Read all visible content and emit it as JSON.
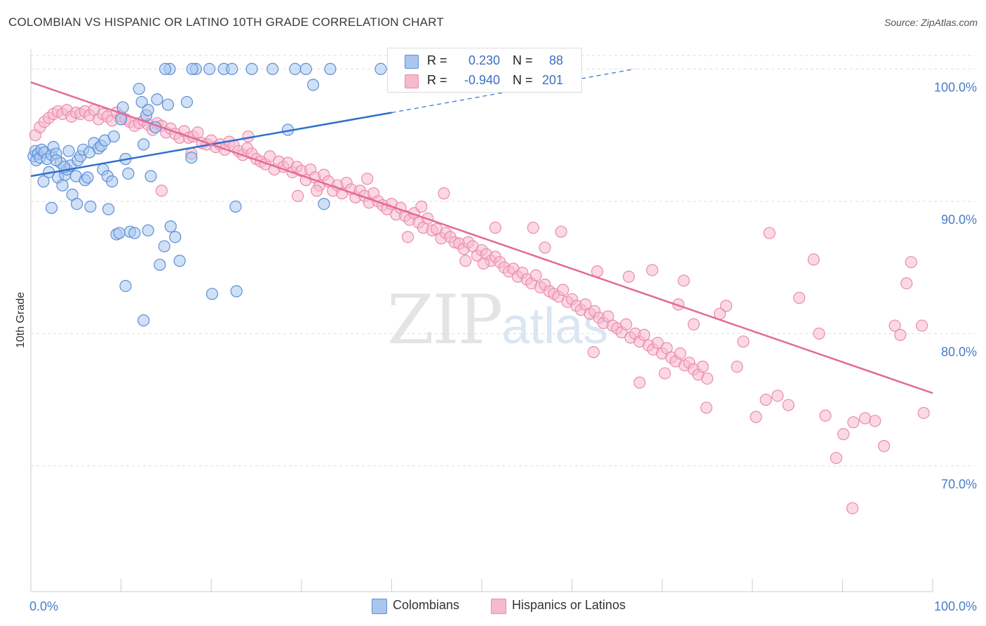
{
  "title": "COLOMBIAN VS HISPANIC OR LATINO 10TH GRADE CORRELATION CHART",
  "source": "Source: ZipAtlas.com",
  "watermark": {
    "zip": "ZIP",
    "atlas": "atlas"
  },
  "colors": {
    "blue_fill": "#a9c6ef",
    "blue_stroke": "#5b8fd6",
    "blue_line": "#2f6fcc",
    "pink_fill": "#f6b9cd",
    "pink_stroke": "#ec8aae",
    "pink_line": "#e46a96",
    "tick_text": "#4a7cc9",
    "grid": "#dddddd"
  },
  "legend": {
    "rows": [
      {
        "r_label": "R =",
        "r_value": "0.230",
        "n_label": "N =",
        "n_value": "88",
        "color": "#a9c6ef"
      },
      {
        "r_label": "R =",
        "r_value": "-0.940",
        "n_label": "N =",
        "n_value": "201",
        "color": "#f6b9cd"
      }
    ]
  },
  "bottom_legend": [
    {
      "label": "Colombians",
      "color": "#a9c6ef"
    },
    {
      "label": "Hispanics or Latinos",
      "color": "#f6b9cd"
    }
  ],
  "chart_data": {
    "type": "scatter",
    "title": "COLOMBIAN VS HISPANIC OR LATINO 10TH GRADE CORRELATION CHART",
    "xlabel": "",
    "ylabel": "10th Grade",
    "xlim": [
      0,
      100
    ],
    "ylim": [
      60.5,
      101.5
    ],
    "x_tick_labels": [
      "0.0%",
      "100.0%"
    ],
    "y_ticks": [
      70,
      80,
      90,
      100
    ],
    "y_tick_labels": [
      "70.0%",
      "80.0%",
      "90.0%",
      "100.0%"
    ],
    "grid": true,
    "series": [
      {
        "name": "Colombians",
        "r": 0.23,
        "n": 88,
        "trend": {
          "x0": 0,
          "y0": 91.9,
          "x1": 40,
          "y1": 96.7,
          "dashed_to_x": 67,
          "dashed_to_y": 100.0
        },
        "points": [
          [
            0.3,
            93.4
          ],
          [
            0.5,
            93.8
          ],
          [
            0.6,
            93.1
          ],
          [
            0.8,
            93.6
          ],
          [
            1.0,
            93.3
          ],
          [
            1.2,
            93.9
          ],
          [
            1.5,
            93.7
          ],
          [
            1.8,
            93.2
          ],
          [
            2.0,
            92.2
          ],
          [
            2.3,
            93.5
          ],
          [
            2.5,
            94.1
          ],
          [
            2.8,
            93.6
          ],
          [
            1.4,
            91.5
          ],
          [
            3.0,
            91.8
          ],
          [
            3.3,
            92.9
          ],
          [
            3.5,
            91.2
          ],
          [
            3.8,
            92.0
          ],
          [
            4.0,
            92.4
          ],
          [
            4.2,
            93.8
          ],
          [
            4.4,
            92.7
          ],
          [
            5.0,
            91.9
          ],
          [
            5.2,
            93.1
          ],
          [
            5.5,
            93.4
          ],
          [
            5.8,
            93.9
          ],
          [
            6.0,
            91.6
          ],
          [
            6.3,
            91.8
          ],
          [
            6.5,
            93.7
          ],
          [
            7.0,
            94.4
          ],
          [
            7.5,
            94.0
          ],
          [
            7.8,
            94.2
          ],
          [
            8.0,
            92.4
          ],
          [
            8.2,
            94.6
          ],
          [
            8.5,
            91.9
          ],
          [
            9.0,
            91.5
          ],
          [
            9.2,
            94.9
          ],
          [
            9.5,
            87.5
          ],
          [
            9.8,
            87.6
          ],
          [
            10.0,
            96.2
          ],
          [
            10.2,
            97.1
          ],
          [
            10.5,
            93.2
          ],
          [
            10.8,
            92.1
          ],
          [
            11.0,
            87.7
          ],
          [
            11.5,
            87.6
          ],
          [
            12.0,
            98.5
          ],
          [
            12.3,
            97.5
          ],
          [
            12.5,
            94.3
          ],
          [
            12.8,
            96.5
          ],
          [
            13.0,
            96.9
          ],
          [
            13.3,
            91.9
          ],
          [
            13.8,
            95.6
          ],
          [
            14.0,
            97.7
          ],
          [
            14.3,
            85.2
          ],
          [
            14.8,
            86.6
          ],
          [
            15.2,
            97.3
          ],
          [
            15.5,
            88.1
          ],
          [
            16.0,
            87.3
          ],
          [
            16.5,
            85.5
          ],
          [
            17.3,
            97.5
          ],
          [
            17.8,
            93.3
          ],
          [
            18.3,
            100.0
          ],
          [
            19.8,
            100.0
          ],
          [
            20.1,
            83.0
          ],
          [
            21.4,
            100.0
          ],
          [
            22.3,
            100.0
          ],
          [
            24.5,
            100.0
          ],
          [
            26.8,
            100.0
          ],
          [
            28.5,
            95.4
          ],
          [
            29.3,
            100.0
          ],
          [
            30.5,
            100.0
          ],
          [
            31.3,
            98.8
          ],
          [
            32.5,
            89.8
          ],
          [
            33.2,
            100.0
          ],
          [
            38.8,
            100.0
          ],
          [
            2.3,
            89.5
          ],
          [
            4.6,
            90.5
          ],
          [
            5.1,
            89.8
          ],
          [
            6.6,
            89.6
          ],
          [
            8.6,
            89.4
          ],
          [
            10.5,
            83.6
          ],
          [
            12.5,
            81.0
          ],
          [
            22.7,
            89.6
          ],
          [
            22.8,
            83.2
          ],
          [
            15.4,
            100.0
          ],
          [
            17.9,
            100.0
          ],
          [
            13.0,
            87.8
          ],
          [
            14.9,
            100.0
          ],
          [
            3.7,
            92.6
          ],
          [
            2.8,
            93.1
          ]
        ]
      },
      {
        "name": "Hispanics or Latinos",
        "r": -0.94,
        "n": 201,
        "trend": {
          "x0": 0,
          "y0": 99.0,
          "x1": 100,
          "y1": 75.5
        },
        "points": [
          [
            0.5,
            95.0
          ],
          [
            1.0,
            95.6
          ],
          [
            1.5,
            96.0
          ],
          [
            2.0,
            96.3
          ],
          [
            2.5,
            96.6
          ],
          [
            3.0,
            96.8
          ],
          [
            3.5,
            96.6
          ],
          [
            4.0,
            96.9
          ],
          [
            4.5,
            96.4
          ],
          [
            5.0,
            96.7
          ],
          [
            5.5,
            96.6
          ],
          [
            6.0,
            96.8
          ],
          [
            6.5,
            96.5
          ],
          [
            7.0,
            96.9
          ],
          [
            7.5,
            96.2
          ],
          [
            8.0,
            96.6
          ],
          [
            8.5,
            96.4
          ],
          [
            9.0,
            96.1
          ],
          [
            9.5,
            96.7
          ],
          [
            10.0,
            96.4
          ],
          [
            10.5,
            96.2
          ],
          [
            11.0,
            96.0
          ],
          [
            11.5,
            95.7
          ],
          [
            12.0,
            95.9
          ],
          [
            12.5,
            96.1
          ],
          [
            13.0,
            95.8
          ],
          [
            13.5,
            95.4
          ],
          [
            14.0,
            95.9
          ],
          [
            14.5,
            95.7
          ],
          [
            15.0,
            95.2
          ],
          [
            15.5,
            95.5
          ],
          [
            16.0,
            95.1
          ],
          [
            16.5,
            94.8
          ],
          [
            17.0,
            95.3
          ],
          [
            17.5,
            94.8
          ],
          [
            18.0,
            94.9
          ],
          [
            18.5,
            95.2
          ],
          [
            19.0,
            94.4
          ],
          [
            19.5,
            94.3
          ],
          [
            20.0,
            94.6
          ],
          [
            20.5,
            94.1
          ],
          [
            21.0,
            94.3
          ],
          [
            21.5,
            93.9
          ],
          [
            22.0,
            94.5
          ],
          [
            22.5,
            94.2
          ],
          [
            23.0,
            93.8
          ],
          [
            23.5,
            93.5
          ],
          [
            24.0,
            94.0
          ],
          [
            24.5,
            93.6
          ],
          [
            25.0,
            93.2
          ],
          [
            25.5,
            93.0
          ],
          [
            26.0,
            92.8
          ],
          [
            26.5,
            93.4
          ],
          [
            27.0,
            92.4
          ],
          [
            27.5,
            93.0
          ],
          [
            28.0,
            92.6
          ],
          [
            28.5,
            92.9
          ],
          [
            29.0,
            92.2
          ],
          [
            29.5,
            92.6
          ],
          [
            30.0,
            92.3
          ],
          [
            30.5,
            91.6
          ],
          [
            31.0,
            92.4
          ],
          [
            31.5,
            91.8
          ],
          [
            32.0,
            91.2
          ],
          [
            32.5,
            92.0
          ],
          [
            33.0,
            91.5
          ],
          [
            33.5,
            90.8
          ],
          [
            34.0,
            91.2
          ],
          [
            34.5,
            90.6
          ],
          [
            35.0,
            91.4
          ],
          [
            35.5,
            90.9
          ],
          [
            36.0,
            90.3
          ],
          [
            36.5,
            90.8
          ],
          [
            37.0,
            90.4
          ],
          [
            37.5,
            89.9
          ],
          [
            38.0,
            90.6
          ],
          [
            38.5,
            90.0
          ],
          [
            39.0,
            89.7
          ],
          [
            39.5,
            89.4
          ],
          [
            40.0,
            89.8
          ],
          [
            40.5,
            89.0
          ],
          [
            41.0,
            89.5
          ],
          [
            41.5,
            88.9
          ],
          [
            42.0,
            88.6
          ],
          [
            42.5,
            89.1
          ],
          [
            43.0,
            88.4
          ],
          [
            43.5,
            88.0
          ],
          [
            44.0,
            88.7
          ],
          [
            44.5,
            87.8
          ],
          [
            45.0,
            87.9
          ],
          [
            45.5,
            87.2
          ],
          [
            46.0,
            87.6
          ],
          [
            46.5,
            87.3
          ],
          [
            47.0,
            86.9
          ],
          [
            47.5,
            86.8
          ],
          [
            48.0,
            86.4
          ],
          [
            48.5,
            86.9
          ],
          [
            49.0,
            86.6
          ],
          [
            49.5,
            85.9
          ],
          [
            50.0,
            86.3
          ],
          [
            50.5,
            86.0
          ],
          [
            51.0,
            85.5
          ],
          [
            51.5,
            85.8
          ],
          [
            52.0,
            85.4
          ],
          [
            52.5,
            85.0
          ],
          [
            53.0,
            84.7
          ],
          [
            53.5,
            84.9
          ],
          [
            54.0,
            84.3
          ],
          [
            54.5,
            84.6
          ],
          [
            55.0,
            84.1
          ],
          [
            55.5,
            83.8
          ],
          [
            56.0,
            84.4
          ],
          [
            56.5,
            83.5
          ],
          [
            57.0,
            83.7
          ],
          [
            57.5,
            83.2
          ],
          [
            58.0,
            83.0
          ],
          [
            58.5,
            82.8
          ],
          [
            59.0,
            83.3
          ],
          [
            59.5,
            82.4
          ],
          [
            60.0,
            82.6
          ],
          [
            60.5,
            82.1
          ],
          [
            61.0,
            81.8
          ],
          [
            61.5,
            82.2
          ],
          [
            62.0,
            81.5
          ],
          [
            62.5,
            81.7
          ],
          [
            63.0,
            81.2
          ],
          [
            63.5,
            80.8
          ],
          [
            64.0,
            81.3
          ],
          [
            64.5,
            80.6
          ],
          [
            65.0,
            80.4
          ],
          [
            65.5,
            80.1
          ],
          [
            66.0,
            80.7
          ],
          [
            66.5,
            79.7
          ],
          [
            67.0,
            80.0
          ],
          [
            67.5,
            79.4
          ],
          [
            68.0,
            79.9
          ],
          [
            68.5,
            79.1
          ],
          [
            69.0,
            78.8
          ],
          [
            69.5,
            79.3
          ],
          [
            70.0,
            78.5
          ],
          [
            70.5,
            78.9
          ],
          [
            71.0,
            78.2
          ],
          [
            71.5,
            77.9
          ],
          [
            72.0,
            78.5
          ],
          [
            72.5,
            77.6
          ],
          [
            73.0,
            77.8
          ],
          [
            73.5,
            77.3
          ],
          [
            74.0,
            76.9
          ],
          [
            74.5,
            77.5
          ],
          [
            75.0,
            76.6
          ],
          [
            14.5,
            90.8
          ],
          [
            17.8,
            93.6
          ],
          [
            24.1,
            94.9
          ],
          [
            29.6,
            90.4
          ],
          [
            31.7,
            90.8
          ],
          [
            37.3,
            91.7
          ],
          [
            41.8,
            87.3
          ],
          [
            43.3,
            89.6
          ],
          [
            45.8,
            90.6
          ],
          [
            48.2,
            85.5
          ],
          [
            50.2,
            85.3
          ],
          [
            55.7,
            88.0
          ],
          [
            57.0,
            86.5
          ],
          [
            58.8,
            87.7
          ],
          [
            62.8,
            84.7
          ],
          [
            66.3,
            84.3
          ],
          [
            68.9,
            84.8
          ],
          [
            71.8,
            82.2
          ],
          [
            73.5,
            80.7
          ],
          [
            76.4,
            81.5
          ],
          [
            77.1,
            82.1
          ],
          [
            78.3,
            77.5
          ],
          [
            79.0,
            79.4
          ],
          [
            80.4,
            73.7
          ],
          [
            81.5,
            75.0
          ],
          [
            82.8,
            75.3
          ],
          [
            84.0,
            74.6
          ],
          [
            85.2,
            82.7
          ],
          [
            86.8,
            85.6
          ],
          [
            87.4,
            80.0
          ],
          [
            88.1,
            73.8
          ],
          [
            89.3,
            70.6
          ],
          [
            90.1,
            72.4
          ],
          [
            91.2,
            73.3
          ],
          [
            92.5,
            73.6
          ],
          [
            93.6,
            73.4
          ],
          [
            94.6,
            71.5
          ],
          [
            95.8,
            80.6
          ],
          [
            96.4,
            79.9
          ],
          [
            97.1,
            83.8
          ],
          [
            97.6,
            85.4
          ],
          [
            98.8,
            80.6
          ],
          [
            99.0,
            74.0
          ],
          [
            91.1,
            66.8
          ],
          [
            67.5,
            76.3
          ],
          [
            70.3,
            77.0
          ],
          [
            62.4,
            78.6
          ],
          [
            74.9,
            74.4
          ],
          [
            72.4,
            84.0
          ],
          [
            81.9,
            87.6
          ],
          [
            51.5,
            88.0
          ]
        ]
      }
    ]
  }
}
